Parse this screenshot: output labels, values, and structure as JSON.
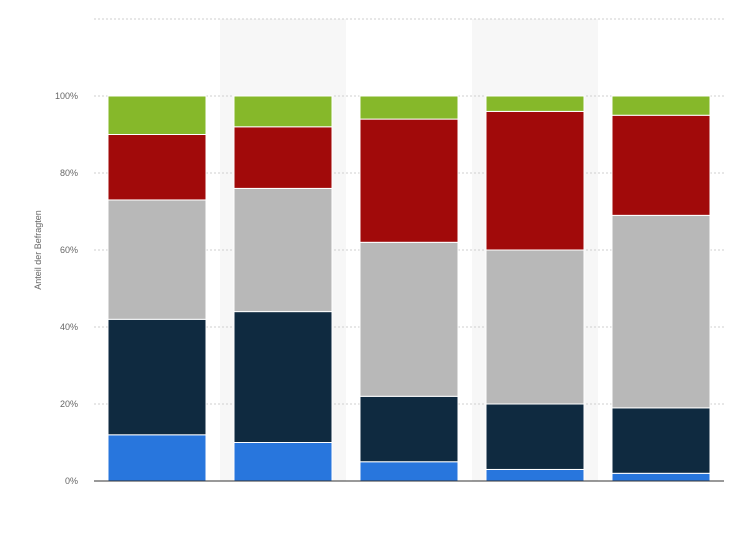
{
  "chart_data": {
    "type": "bar",
    "stacked": true,
    "categories": [
      "",
      "",
      "",
      "",
      ""
    ],
    "series": [
      {
        "values": [
          12,
          10,
          5,
          3,
          2
        ],
        "color": "#2876dd"
      },
      {
        "values": [
          30,
          34,
          17,
          17,
          17
        ],
        "color": "#0f2a40"
      },
      {
        "values": [
          31,
          32,
          40,
          40,
          50
        ],
        "color": "#b8b8b8"
      },
      {
        "values": [
          17,
          16,
          32,
          36,
          26
        ],
        "color": "#a10a0a"
      },
      {
        "values": [
          10,
          8,
          6,
          4,
          5
        ],
        "color": "#86b82a"
      }
    ],
    "ylabel": "Anteil der Befragten",
    "ylim": [
      0,
      120
    ],
    "yticks": [
      0,
      20,
      40,
      60,
      80,
      100
    ],
    "ytick_labels": [
      "0%",
      "20%",
      "40%",
      "60%",
      "80%",
      "100%"
    ],
    "grid": true,
    "alternate_column_shading": true,
    "shade_color": "#f7f7f7"
  }
}
